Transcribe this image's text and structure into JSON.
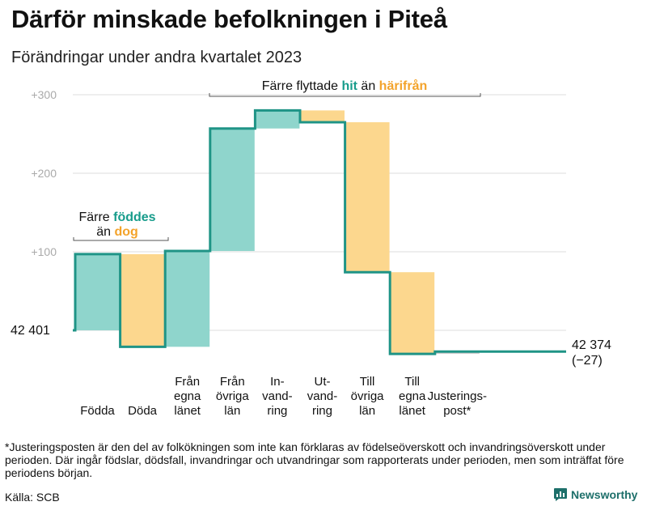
{
  "title": "Därför minskade befolkningen i Piteå",
  "subtitle": "Förändringar under andra kvartalet 2023",
  "colors": {
    "increase": "#8fd5cc",
    "decrease": "#fcd78e",
    "line": "#1f9486",
    "teal_text": "#179c8b",
    "orange_text": "#f3a32b",
    "grid": "#dddddd",
    "axis_text": "#aaaaaa",
    "adjust": "#cccccc",
    "brand": "#1d6f6a"
  },
  "chart_data": {
    "type": "waterfall",
    "start_label": "42  401",
    "end_label_line1": "42 374",
    "end_label_line2": "(−27)",
    "ylim": [
      -32,
      310
    ],
    "y_ticks": [
      {
        "value": 300,
        "label": "+300"
      },
      {
        "value": 200,
        "label": "+200"
      },
      {
        "value": 100,
        "label": "+100"
      },
      {
        "value": 0,
        "label": ""
      }
    ],
    "steps": [
      {
        "label": [
          "Födda"
        ],
        "change": 97
      },
      {
        "label": [
          "Döda"
        ],
        "change": -118
      },
      {
        "label": [
          "Från",
          "egna",
          "länet"
        ],
        "change": 122
      },
      {
        "label": [
          "Från",
          "övriga",
          "län"
        ],
        "change": 156
      },
      {
        "label": [
          "In-",
          "vand-",
          "ring"
        ],
        "change": 23
      },
      {
        "label": [
          "Ut-",
          "vand-",
          "ring"
        ],
        "change": -15
      },
      {
        "label": [
          "Till",
          "övriga",
          "län"
        ],
        "change": -191
      },
      {
        "label": [
          "Till",
          "egna",
          "länet"
        ],
        "change": -104
      },
      {
        "label": [
          "Justerings-",
          "post*"
        ],
        "change": 3
      }
    ],
    "annotations": [
      {
        "id": "births",
        "line1_prefix": "Färre ",
        "line1_highlight": "föddes",
        "line2_prefix": "än ",
        "line2_highlight": "dog"
      },
      {
        "id": "migration",
        "prefix": "Färre flyttade ",
        "highlight1": "hit",
        "middle": " än ",
        "highlight2": "härifrån"
      }
    ]
  },
  "footnote": "*Justeringsposten är den del av folkökningen som inte kan förklaras av födelseöverskott och invandringsöverskott under perioden. Där ingår födslar, dödsfall, invandringar och utvandringar som rapporterats under perioden, men som inträffat före periodens början.",
  "source": "Källa: SCB",
  "brand": "Newsworthy"
}
